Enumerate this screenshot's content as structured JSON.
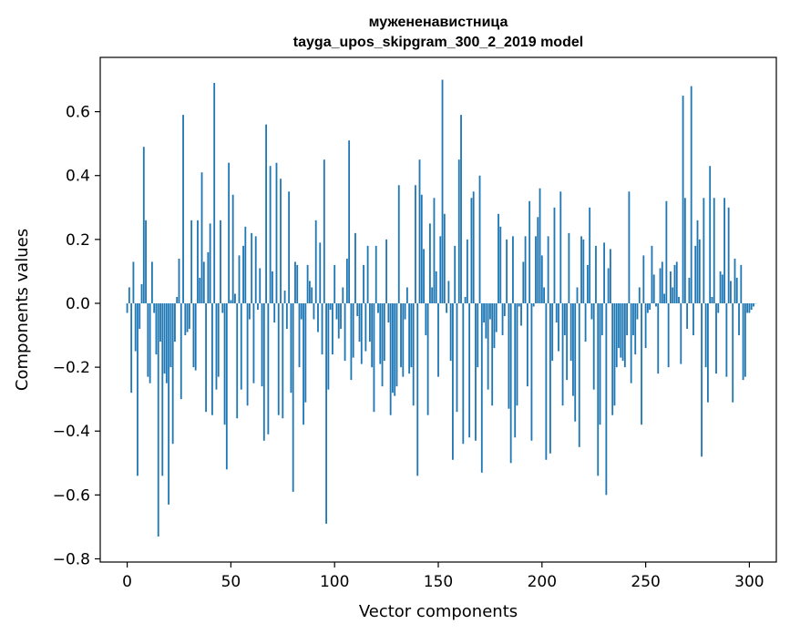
{
  "chart_data": {
    "type": "bar",
    "title": "мужененавистница",
    "subtitle": "tayga_upos_skipgram_300_2_2019 model",
    "xlabel": "Vector components",
    "ylabel": "Components values",
    "xlim": [
      -13,
      313
    ],
    "ylim": [
      -0.81,
      0.77
    ],
    "xticks": [
      0,
      50,
      100,
      150,
      200,
      250,
      300
    ],
    "yticks": [
      -0.8,
      -0.6,
      -0.4,
      -0.2,
      0.0,
      0.2,
      0.4,
      0.6
    ],
    "ytick_labels": [
      "−0.8",
      "−0.6",
      "−0.4",
      "−0.2",
      "0.0",
      "0.2",
      "0.4",
      "0.6"
    ],
    "bar_color": "#1f77b4",
    "grid": false,
    "legend": "none",
    "values": [
      -0.03,
      0.05,
      -0.28,
      0.13,
      -0.15,
      -0.54,
      -0.08,
      0.06,
      0.49,
      0.26,
      -0.23,
      -0.25,
      0.13,
      -0.03,
      -0.16,
      -0.73,
      -0.12,
      -0.54,
      -0.22,
      -0.25,
      -0.63,
      -0.2,
      -0.44,
      -0.12,
      0.02,
      0.14,
      -0.3,
      0.59,
      -0.1,
      -0.09,
      -0.08,
      0.26,
      -0.2,
      -0.21,
      0.26,
      0.08,
      0.41,
      0.13,
      -0.34,
      0.16,
      0.25,
      -0.35,
      0.69,
      -0.27,
      -0.23,
      0.26,
      -0.03,
      -0.38,
      -0.52,
      0.44,
      0.01,
      0.34,
      0.03,
      -0.36,
      0.15,
      -0.27,
      0.18,
      0.24,
      -0.32,
      -0.05,
      0.22,
      -0.25,
      0.21,
      -0.02,
      0.11,
      -0.26,
      -0.43,
      0.56,
      -0.41,
      0.43,
      0.1,
      -0.06,
      0.44,
      -0.35,
      0.39,
      -0.36,
      0.04,
      -0.08,
      0.35,
      -0.28,
      -0.59,
      0.13,
      0.12,
      -0.2,
      -0.05,
      -0.38,
      -0.31,
      0.12,
      0.07,
      0.05,
      -0.05,
      0.26,
      -0.09,
      0.19,
      -0.16,
      0.45,
      -0.69,
      -0.27,
      -0.02,
      -0.16,
      0.12,
      -0.05,
      -0.11,
      -0.08,
      0.05,
      -0.18,
      0.14,
      0.51,
      -0.24,
      -0.17,
      0.22,
      -0.04,
      -0.12,
      -0.19,
      0.12,
      -0.15,
      0.18,
      -0.12,
      -0.2,
      -0.34,
      0.18,
      -0.03,
      -0.19,
      -0.26,
      -0.18,
      0.2,
      -0.06,
      -0.35,
      -0.28,
      -0.29,
      -0.26,
      0.37,
      -0.2,
      -0.23,
      -0.05,
      0.05,
      -0.22,
      -0.2,
      -0.32,
      0.37,
      -0.54,
      0.45,
      0.34,
      0.17,
      -0.1,
      -0.35,
      0.25,
      0.05,
      0.33,
      0.1,
      -0.23,
      0.21,
      0.7,
      0.28,
      -0.03,
      0.07,
      -0.18,
      -0.49,
      0.18,
      -0.34,
      0.45,
      0.59,
      -0.44,
      0.02,
      0.2,
      -0.42,
      0.33,
      0.35,
      -0.43,
      -0.2,
      0.4,
      -0.53,
      -0.06,
      -0.11,
      -0.27,
      -0.05,
      -0.32,
      -0.14,
      -0.09,
      0.28,
      0.24,
      -0.1,
      -0.04,
      0.2,
      -0.33,
      -0.5,
      0.21,
      -0.42,
      -0.32,
      -0.01,
      -0.07,
      0.13,
      0.21,
      -0.26,
      0.32,
      -0.43,
      -0.01,
      0.21,
      0.27,
      0.36,
      0.15,
      0.05,
      -0.49,
      0.21,
      -0.47,
      -0.18,
      0.3,
      -0.06,
      -0.15,
      0.35,
      -0.32,
      -0.1,
      -0.24,
      0.22,
      -0.18,
      -0.29,
      -0.37,
      0.05,
      -0.45,
      0.21,
      0.2,
      -0.12,
      0.12,
      0.3,
      -0.05,
      -0.27,
      0.18,
      -0.54,
      -0.38,
      -0.1,
      0.19,
      -0.6,
      0.11,
      0.17,
      -0.35,
      -0.32,
      -0.2,
      -0.14,
      -0.17,
      -0.18,
      -0.2,
      -0.1,
      0.35,
      -0.25,
      -0.1,
      -0.16,
      -0.05,
      0.05,
      -0.38,
      0.15,
      -0.14,
      -0.03,
      -0.02,
      0.18,
      0.09,
      -0.01,
      -0.22,
      0.11,
      0.13,
      0.03,
      0.32,
      -0.2,
      0.1,
      0.05,
      0.12,
      0.13,
      0.02,
      -0.19,
      0.65,
      0.33,
      -0.08,
      0.08,
      0.68,
      -0.1,
      0.18,
      0.26,
      0.2,
      -0.48,
      0.33,
      -0.2,
      -0.31,
      0.43,
      0.02,
      0.33,
      -0.22,
      -0.03,
      0.1,
      0.09,
      0.33,
      -0.23,
      0.3,
      0.07,
      -0.31,
      0.14,
      0.08,
      -0.1,
      0.12,
      -0.24,
      -0.23,
      -0.03,
      -0.03,
      -0.02,
      -0.01,
      0.0
    ]
  }
}
